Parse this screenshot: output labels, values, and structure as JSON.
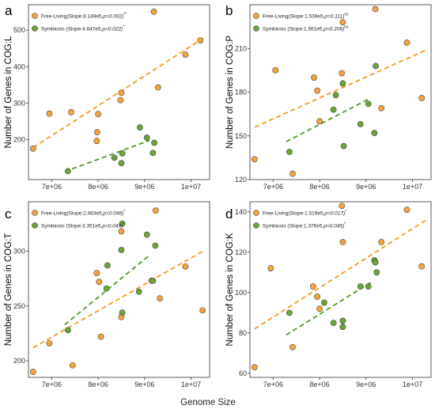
{
  "figure": {
    "xlabel": "Genome Size"
  },
  "colors": {
    "free_living": "#F5A43A",
    "symbiosis": "#6AA537",
    "free_living_line": "#F59A1E",
    "symbiosis_line": "#4E9A22"
  },
  "chart_data": [
    {
      "type": "scatter",
      "panel": "a",
      "ylabel": "Number of Genes in COG:L",
      "xlim": [
        6500000,
        10400000
      ],
      "ylim": [
        90,
        570
      ],
      "x_ticks": [
        7000000,
        8000000,
        9000000,
        10000000
      ],
      "x_tick_labels": [
        "7e+06",
        "8e+06",
        "9e+06",
        "1e+07"
      ],
      "y_ticks": [
        200,
        300,
        400,
        500
      ],
      "y_tick_labels": [
        "200",
        "300",
        "400",
        "500"
      ],
      "grid": false,
      "legend_position": "top-left",
      "series": [
        {
          "name": "Free-Living",
          "legend_label": "Free-Living(Slope:8.149e5,",
          "legend_p": "p=0.002)",
          "legend_sig": "**",
          "x": [
            6600000,
            6950000,
            7420000,
            7970000,
            7980000,
            8000000,
            8480000,
            8500000,
            9200000,
            9290000,
            9880000,
            10200000
          ],
          "y": [
            175,
            271,
            275,
            196,
            220,
            270,
            308,
            328,
            551,
            343,
            433,
            472
          ],
          "fit_x": [
            6600000,
            10300000
          ],
          "fit_y": [
            178,
            481
          ]
        },
        {
          "name": "Symbiosis",
          "legend_label": "Symbiosis  (Slope:4.647e5,",
          "legend_p": "p=0.022)",
          "legend_sig": "*",
          "x": [
            7350000,
            8350000,
            8500000,
            8520000,
            8900000,
            9050000,
            9180000,
            9210000
          ],
          "y": [
            113,
            150,
            135,
            162,
            233,
            205,
            163,
            191
          ],
          "fit_x": [
            7280000,
            9100000
          ],
          "fit_y": [
            112,
            197
          ]
        }
      ]
    },
    {
      "type": "scatter",
      "panel": "b",
      "ylabel": "Number of Genes in COG:P",
      "xlim": [
        6500000,
        10400000
      ],
      "ylim": [
        120,
        240
      ],
      "x_ticks": [
        7000000,
        8000000,
        9000000,
        10000000
      ],
      "x_tick_labels": [
        "7e+06",
        "8e+06",
        "9e+06",
        "1e+07"
      ],
      "y_ticks": [
        120,
        150,
        180,
        210
      ],
      "y_tick_labels": [
        "120",
        "150",
        "180",
        "210"
      ],
      "grid": false,
      "legend_position": "top-left",
      "series": [
        {
          "name": "Free-Living",
          "legend_label": "Free-Living(Slope:1.539e5,",
          "legend_p": "p=0.111)",
          "legend_sig": "ns",
          "x": [
            6600000,
            7050000,
            7420000,
            7880000,
            7950000,
            8000000,
            8480000,
            8500000,
            9200000,
            9330000,
            9880000,
            10200000
          ],
          "y": [
            134,
            195,
            124,
            190,
            181,
            160,
            193,
            228,
            237,
            169,
            214,
            176
          ],
          "fit_x": [
            6600000,
            10300000
          ],
          "fit_y": [
            156,
            209
          ]
        },
        {
          "name": "Symbiosis",
          "legend_label": "Symbiosis  (Slope:1.561e5,",
          "legend_p": "p=0.206)",
          "legend_sig": "ns",
          "x": [
            7350000,
            8300000,
            8350000,
            8500000,
            8520000,
            8880000,
            9050000,
            9180000,
            9210000
          ],
          "y": [
            139,
            168,
            178,
            186,
            143,
            158,
            172,
            152,
            198
          ],
          "fit_x": [
            7280000,
            9100000
          ],
          "fit_y": [
            146,
            176
          ]
        }
      ]
    },
    {
      "type": "scatter",
      "panel": "c",
      "ylabel": "Number of Genes in COG:T",
      "xlim": [
        6500000,
        10400000
      ],
      "ylim": [
        185,
        345
      ],
      "x_ticks": [
        7000000,
        8000000,
        9000000,
        10000000
      ],
      "x_tick_labels": [
        "7e+06",
        "8e+06",
        "9e+06",
        "1e+07"
      ],
      "y_ticks": [
        200,
        250,
        300
      ],
      "y_tick_labels": [
        "200",
        "250",
        "300"
      ],
      "grid": false,
      "legend_position": "top-left",
      "series": [
        {
          "name": "Free-Living",
          "legend_label": "Free-Living(Slope:2.483e5,",
          "legend_p": "p=0.046)",
          "legend_sig": "*",
          "x": [
            6600000,
            6950000,
            7450000,
            7970000,
            8020000,
            8060000,
            8500000,
            8500000,
            9150000,
            9240000,
            9330000,
            9880000,
            10250000
          ],
          "y": [
            190,
            216,
            196,
            280,
            272,
            222,
            318,
            240,
            273,
            337,
            257,
            286,
            246
          ],
          "fit_x": [
            6600000,
            10300000
          ],
          "fit_y": [
            212,
            301
          ]
        },
        {
          "name": "Symbiosis",
          "legend_label": "Symbiosis  (Slope:3.351e5,",
          "legend_p": "p=0.049)",
          "legend_sig": "*",
          "x": [
            7350000,
            8180000,
            8200000,
            8500000,
            8520000,
            8520000,
            8880000,
            9050000,
            9180000,
            9230000
          ],
          "y": [
            228,
            266,
            287,
            301,
            244,
            325,
            263,
            315,
            273,
            305
          ],
          "fit_x": [
            7280000,
            9100000
          ],
          "fit_y": [
            233,
            296
          ]
        }
      ]
    },
    {
      "type": "scatter",
      "panel": "d",
      "ylabel": "Number of Genes in COG:K",
      "xlim": [
        6500000,
        10400000
      ],
      "ylim": [
        58,
        145
      ],
      "x_ticks": [
        7000000,
        8000000,
        9000000,
        10000000
      ],
      "x_tick_labels": [
        "7e+06",
        "8e+06",
        "9e+06",
        "1e+07"
      ],
      "y_ticks": [
        60,
        80,
        100,
        120,
        140
      ],
      "y_tick_labels": [
        "60",
        "80",
        "100",
        "120",
        "140"
      ],
      "grid": false,
      "legend_position": "top-left",
      "series": [
        {
          "name": "Free-Living",
          "legend_label": "Free-Living(Slope:1.519e5,",
          "legend_p": "p=0.017)",
          "legend_sig": "*",
          "x": [
            6600000,
            6950000,
            7420000,
            7860000,
            7950000,
            8000000,
            8480000,
            8500000,
            9200000,
            9330000,
            9880000,
            10200000
          ],
          "y": [
            63,
            112,
            73,
            103,
            98,
            92,
            143,
            125,
            115,
            125,
            141,
            113
          ],
          "fit_x": [
            6600000,
            10300000
          ],
          "fit_y": [
            82,
            136
          ]
        },
        {
          "name": "Symbiosis",
          "legend_label": "Symbiosis  (Slope:1.376e5,",
          "legend_p": "p=0.045)",
          "legend_sig": "*",
          "x": [
            7350000,
            8100000,
            8300000,
            8500000,
            8500000,
            8880000,
            9050000,
            9180000,
            9200000,
            9230000
          ],
          "y": [
            90,
            95,
            85,
            86,
            83,
            103,
            103,
            116,
            115,
            110
          ],
          "fit_x": [
            7280000,
            9100000
          ],
          "fit_y": [
            79,
            105
          ]
        }
      ]
    }
  ]
}
